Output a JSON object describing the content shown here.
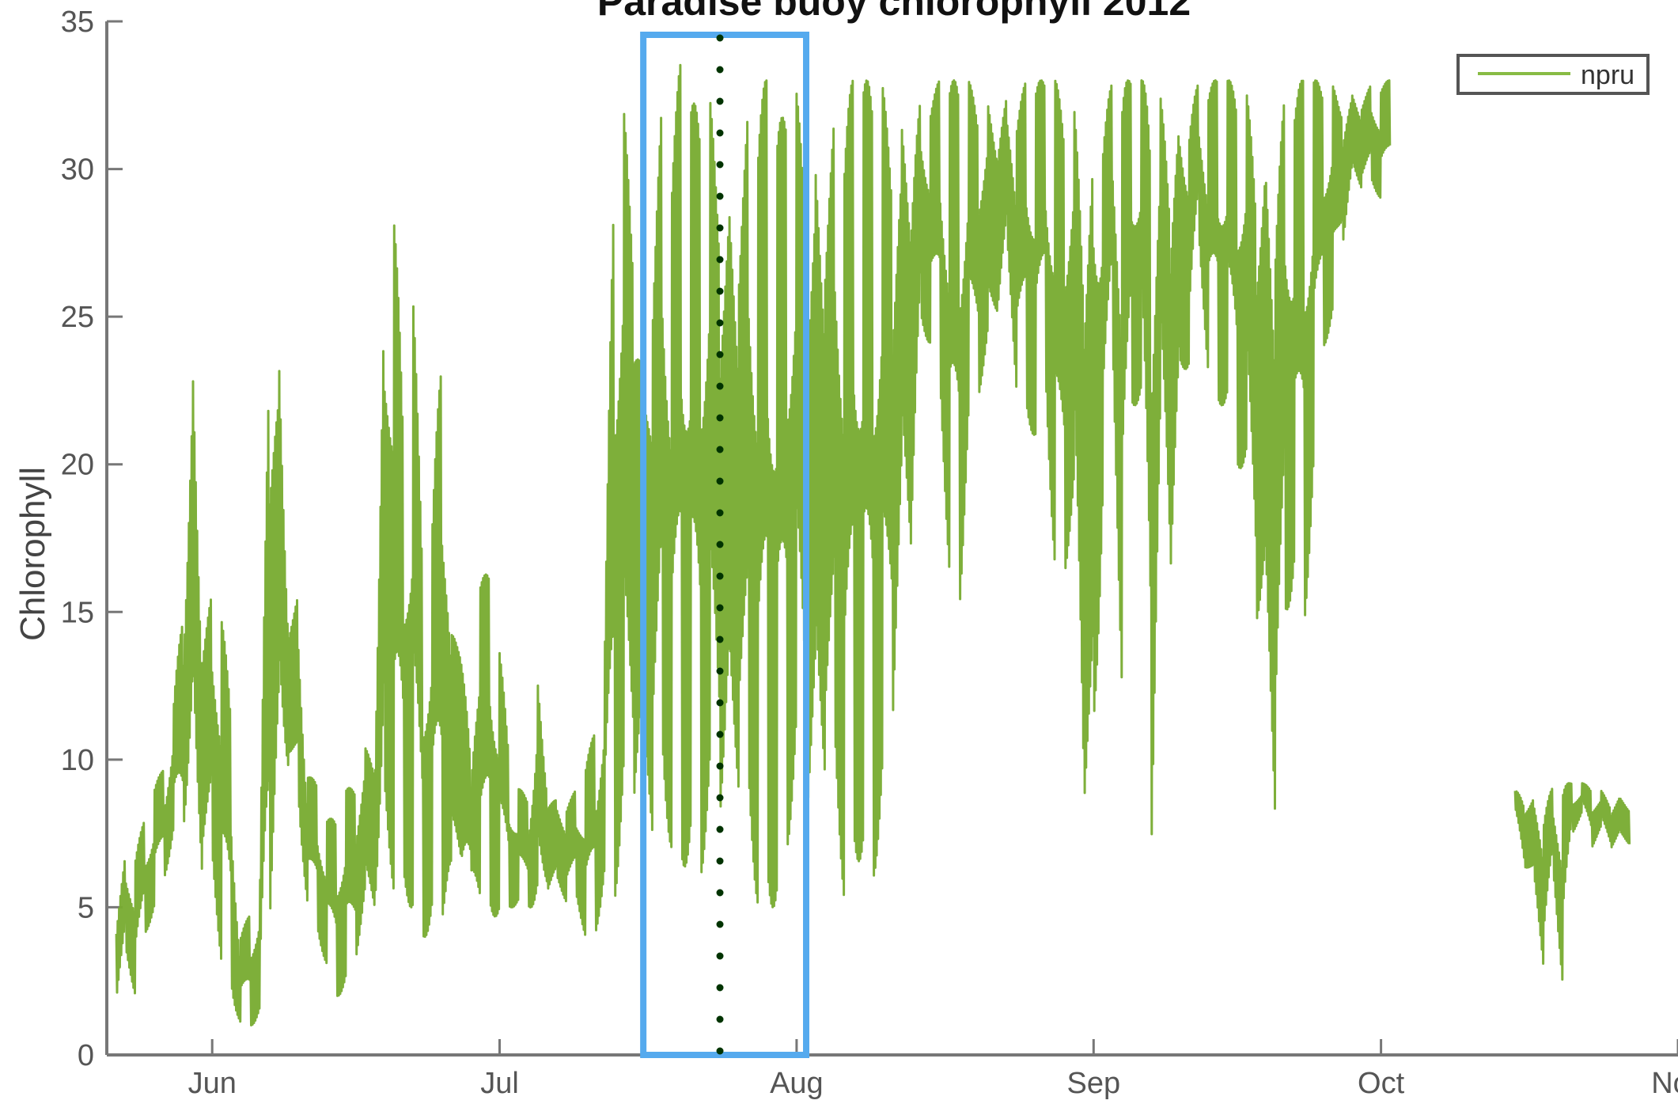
{
  "chart_data": {
    "type": "line",
    "title": "Paradise buoy chlorophyll 2012",
    "xlabel": "",
    "ylabel": "Chlorophyll",
    "x_tick_labels": [
      "Jun",
      "Jul",
      "Aug",
      "Sep",
      "Oct",
      "Nov"
    ],
    "x_tick_dates": [
      "2012-06-01",
      "2012-07-01",
      "2012-08-01",
      "2012-09-01",
      "2012-10-01",
      "2012-11-01"
    ],
    "xlim": [
      "2012-05-21",
      "2012-11-01"
    ],
    "ylim": [
      0,
      35
    ],
    "y_ticks": [
      0,
      5,
      10,
      15,
      20,
      25,
      30,
      35
    ],
    "grid": false,
    "legend": {
      "position": "top-right",
      "entries": [
        "npru"
      ]
    },
    "series": [
      {
        "name": "npru",
        "color": "#77ab2f",
        "segments": [
          {
            "x": [
              "2012-05-22",
              "2012-05-23",
              "2012-05-24",
              "2012-05-25",
              "2012-05-26",
              "2012-05-27",
              "2012-05-28",
              "2012-05-29",
              "2012-05-30",
              "2012-05-31",
              "2012-06-01",
              "2012-06-02",
              "2012-06-03",
              "2012-06-04",
              "2012-06-05",
              "2012-06-06",
              "2012-06-07",
              "2012-06-08",
              "2012-06-09",
              "2012-06-10",
              "2012-06-11",
              "2012-06-12",
              "2012-06-13",
              "2012-06-14",
              "2012-06-15",
              "2012-06-16",
              "2012-06-17",
              "2012-06-18",
              "2012-06-19",
              "2012-06-20",
              "2012-06-21",
              "2012-06-22",
              "2012-06-23",
              "2012-06-24",
              "2012-06-25",
              "2012-06-26",
              "2012-06-27",
              "2012-06-28",
              "2012-06-29",
              "2012-06-30",
              "2012-07-01",
              "2012-07-02",
              "2012-07-03",
              "2012-07-04",
              "2012-07-05",
              "2012-07-06",
              "2012-07-07",
              "2012-07-08",
              "2012-07-09",
              "2012-07-10",
              "2012-07-11",
              "2012-07-12",
              "2012-07-13",
              "2012-07-14",
              "2012-07-15",
              "2012-07-16",
              "2012-07-17",
              "2012-07-18",
              "2012-07-19",
              "2012-07-20",
              "2012-07-21",
              "2012-07-22",
              "2012-07-23",
              "2012-07-24",
              "2012-07-25",
              "2012-07-26",
              "2012-07-27",
              "2012-07-28",
              "2012-07-29",
              "2012-07-30",
              "2012-07-31",
              "2012-08-01",
              "2012-08-02",
              "2012-08-03",
              "2012-08-04",
              "2012-08-05",
              "2012-08-06",
              "2012-08-07",
              "2012-08-08",
              "2012-08-09",
              "2012-08-10",
              "2012-08-11",
              "2012-08-12",
              "2012-08-13",
              "2012-08-14",
              "2012-08-15",
              "2012-08-16",
              "2012-08-17",
              "2012-08-18",
              "2012-08-19",
              "2012-08-20",
              "2012-08-21",
              "2012-08-22",
              "2012-08-23",
              "2012-08-24",
              "2012-08-25",
              "2012-08-26",
              "2012-08-27",
              "2012-08-28",
              "2012-08-29",
              "2012-08-30",
              "2012-08-31",
              "2012-09-01",
              "2012-09-02",
              "2012-09-03",
              "2012-09-04",
              "2012-09-05",
              "2012-09-06",
              "2012-09-07",
              "2012-09-08",
              "2012-09-09",
              "2012-09-10",
              "2012-09-11",
              "2012-09-12",
              "2012-09-13",
              "2012-09-14",
              "2012-09-15",
              "2012-09-16",
              "2012-09-17",
              "2012-09-18",
              "2012-09-19",
              "2012-09-20",
              "2012-09-21",
              "2012-09-22",
              "2012-09-23",
              "2012-09-24",
              "2012-09-25",
              "2012-09-26",
              "2012-09-27",
              "2012-09-28",
              "2012-09-29",
              "2012-09-30",
              "2012-10-01"
            ],
            "high": [
              5,
              7,
              7,
              8,
              9,
              10,
              12,
              17,
              25,
              16,
              16,
              16,
              11,
              4,
              5,
              6,
              29,
              25,
              16,
              16,
              10,
              9,
              8,
              8,
              9,
              10,
              11,
              12,
              28,
              32,
              20,
              26,
              16,
              18,
              27,
              15,
              17,
              10,
              18,
              16,
              14,
              10,
              9,
              9,
              13,
              10,
              9,
              9,
              9,
              10,
              11,
              14,
              33,
              33,
              33,
              25,
              30,
              33,
              31,
              34,
              32,
              33,
              33,
              33,
              32,
              32,
              33,
              33,
              33,
              31,
              33,
              33,
              33,
              33,
              33,
              33,
              33,
              33,
              33,
              33,
              33,
              33,
              33,
              33,
              33,
              33,
              33,
              33,
              33,
              33,
              33,
              33,
              33,
              33,
              33,
              33,
              33,
              33,
              33,
              33,
              33,
              33,
              33,
              33,
              33,
              33,
              33,
              33,
              33,
              33,
              33,
              33,
              33,
              33,
              33,
              33,
              33,
              33,
              33,
              33,
              33,
              33,
              33,
              33,
              33,
              33,
              33,
              33,
              33,
              33,
              33,
              33,
              33
            ],
            "low": [
              1,
              3,
              2,
              4,
              5,
              6,
              7,
              7,
              8,
              5,
              5,
              3,
              2,
              1,
              1,
              1,
              3,
              8,
              9,
              7,
              5,
              4,
              3,
              2,
              2,
              3,
              4,
              4,
              4,
              5,
              5,
              5,
              4,
              4,
              4,
              4,
              5,
              5,
              5,
              4,
              5,
              5,
              5,
              5,
              4,
              5,
              5,
              5,
              5,
              4,
              4,
              6,
              5,
              5,
              6,
              6,
              6,
              7,
              7,
              6,
              7,
              6,
              6,
              6,
              6,
              7,
              5,
              5,
              5,
              5,
              7,
              8,
              6,
              6,
              7,
              6,
              5,
              6,
              7,
              6,
              7,
              10,
              16,
              15,
              23,
              24,
              22,
              16,
              15,
              21,
              22,
              22,
              24,
              26,
              22,
              21,
              21,
              23,
              15,
              16,
              16,
              5,
              4,
              19,
              23,
              12,
              22,
              22,
              6,
              20,
              14,
              20,
              23,
              27,
              23,
              22,
              22,
              20,
              18,
              13,
              10,
              6,
              12,
              17,
              14,
              20,
              24,
              24,
              27,
              29,
              29,
              29,
              29
            ]
          },
          {
            "x": [
              "2012-10-15",
              "2012-10-16",
              "2012-10-17",
              "2012-10-18",
              "2012-10-19",
              "2012-10-20",
              "2012-10-21",
              "2012-10-22",
              "2012-10-23",
              "2012-10-24",
              "2012-10-25",
              "2012-10-26"
            ],
            "high": [
              9,
              9.2,
              9.1,
              9,
              9.1,
              9.2,
              9.2,
              9.2,
              9.1,
              9,
              8.8,
              9
            ],
            "low": [
              8,
              6,
              5,
              2.6,
              5.8,
              2.3,
              7.5,
              8.2,
              7,
              7.5,
              6.8,
              7
            ]
          }
        ]
      }
    ],
    "annotations": [
      {
        "kind": "highlight-box",
        "x_start": "2012-07-16",
        "x_end": "2012-08-02",
        "color": "#55aaee"
      },
      {
        "kind": "dotted-vertical-line",
        "x": "2012-07-24",
        "color": "#003300"
      }
    ]
  }
}
